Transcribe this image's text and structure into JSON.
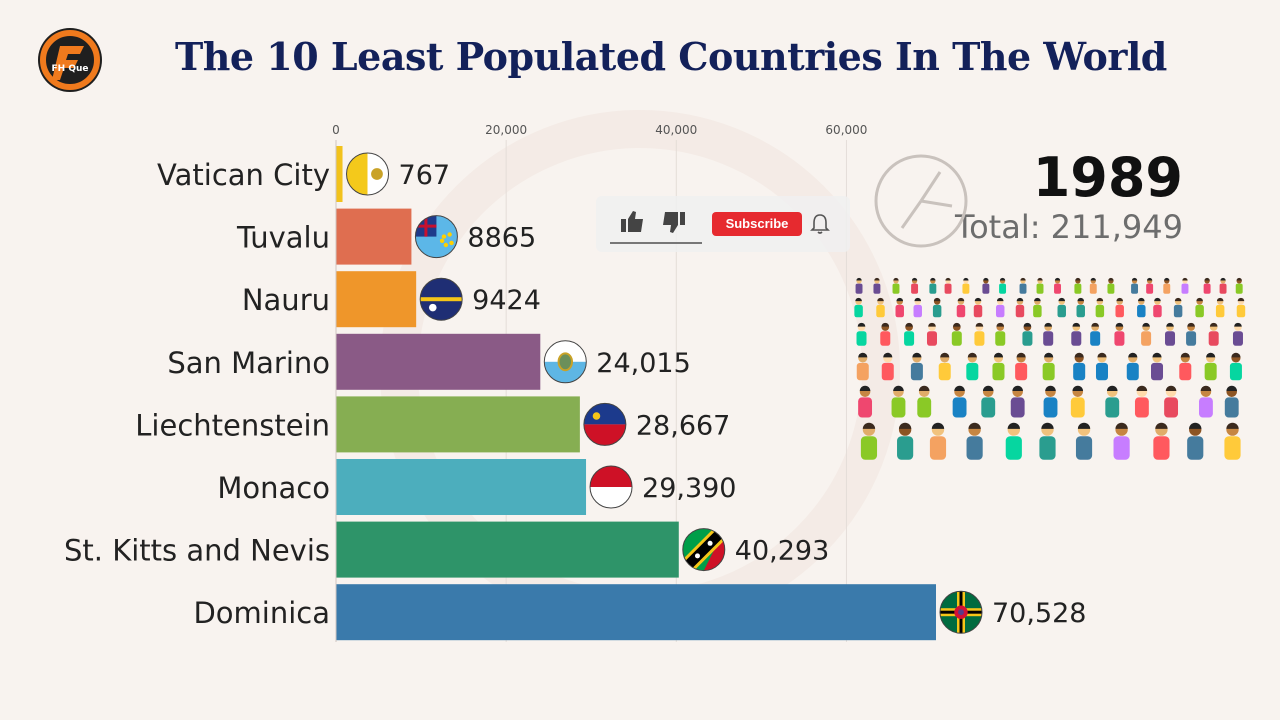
{
  "title": "The 10 Least Populated Countries In The World",
  "logo": {
    "text": "FH Que"
  },
  "year": "1989",
  "total": "Total: 211,949",
  "youtube": {
    "subscribe_label": "Subscribe"
  },
  "chart_data": {
    "type": "bar",
    "orientation": "horizontal",
    "title": "The 10 Least Populated Countries In The World",
    "categories": [
      "Vatican City",
      "Tuvalu",
      "Nauru",
      "San Marino",
      "Liechtenstein",
      "Monaco",
      "St. Kitts and Nevis",
      "Dominica"
    ],
    "values": [
      767,
      8865,
      9424,
      24015,
      28667,
      29390,
      40293,
      70528
    ],
    "value_labels": [
      "767",
      "8865",
      "9424",
      "24,015",
      "28,667",
      "29,390",
      "40,293",
      "70,528"
    ],
    "colors": [
      "#f2c21c",
      "#df6e50",
      "#ef962a",
      "#8a5a86",
      "#86ae52",
      "#4caebd",
      "#2e9469",
      "#3a7aab"
    ],
    "flags": [
      "vatican-flag",
      "tuvalu-flag",
      "nauru-flag",
      "san-marino-flag",
      "liechtenstein-flag",
      "monaco-flag",
      "st-kitts-nevis-flag",
      "dominica-flag"
    ],
    "xlim": [
      0,
      70528
    ],
    "xticks": [
      0,
      20000,
      40000,
      60000
    ],
    "xtick_labels": [
      "0",
      "20,000",
      "40,000",
      "60,000"
    ],
    "axis_position": "top",
    "grid": true
  }
}
